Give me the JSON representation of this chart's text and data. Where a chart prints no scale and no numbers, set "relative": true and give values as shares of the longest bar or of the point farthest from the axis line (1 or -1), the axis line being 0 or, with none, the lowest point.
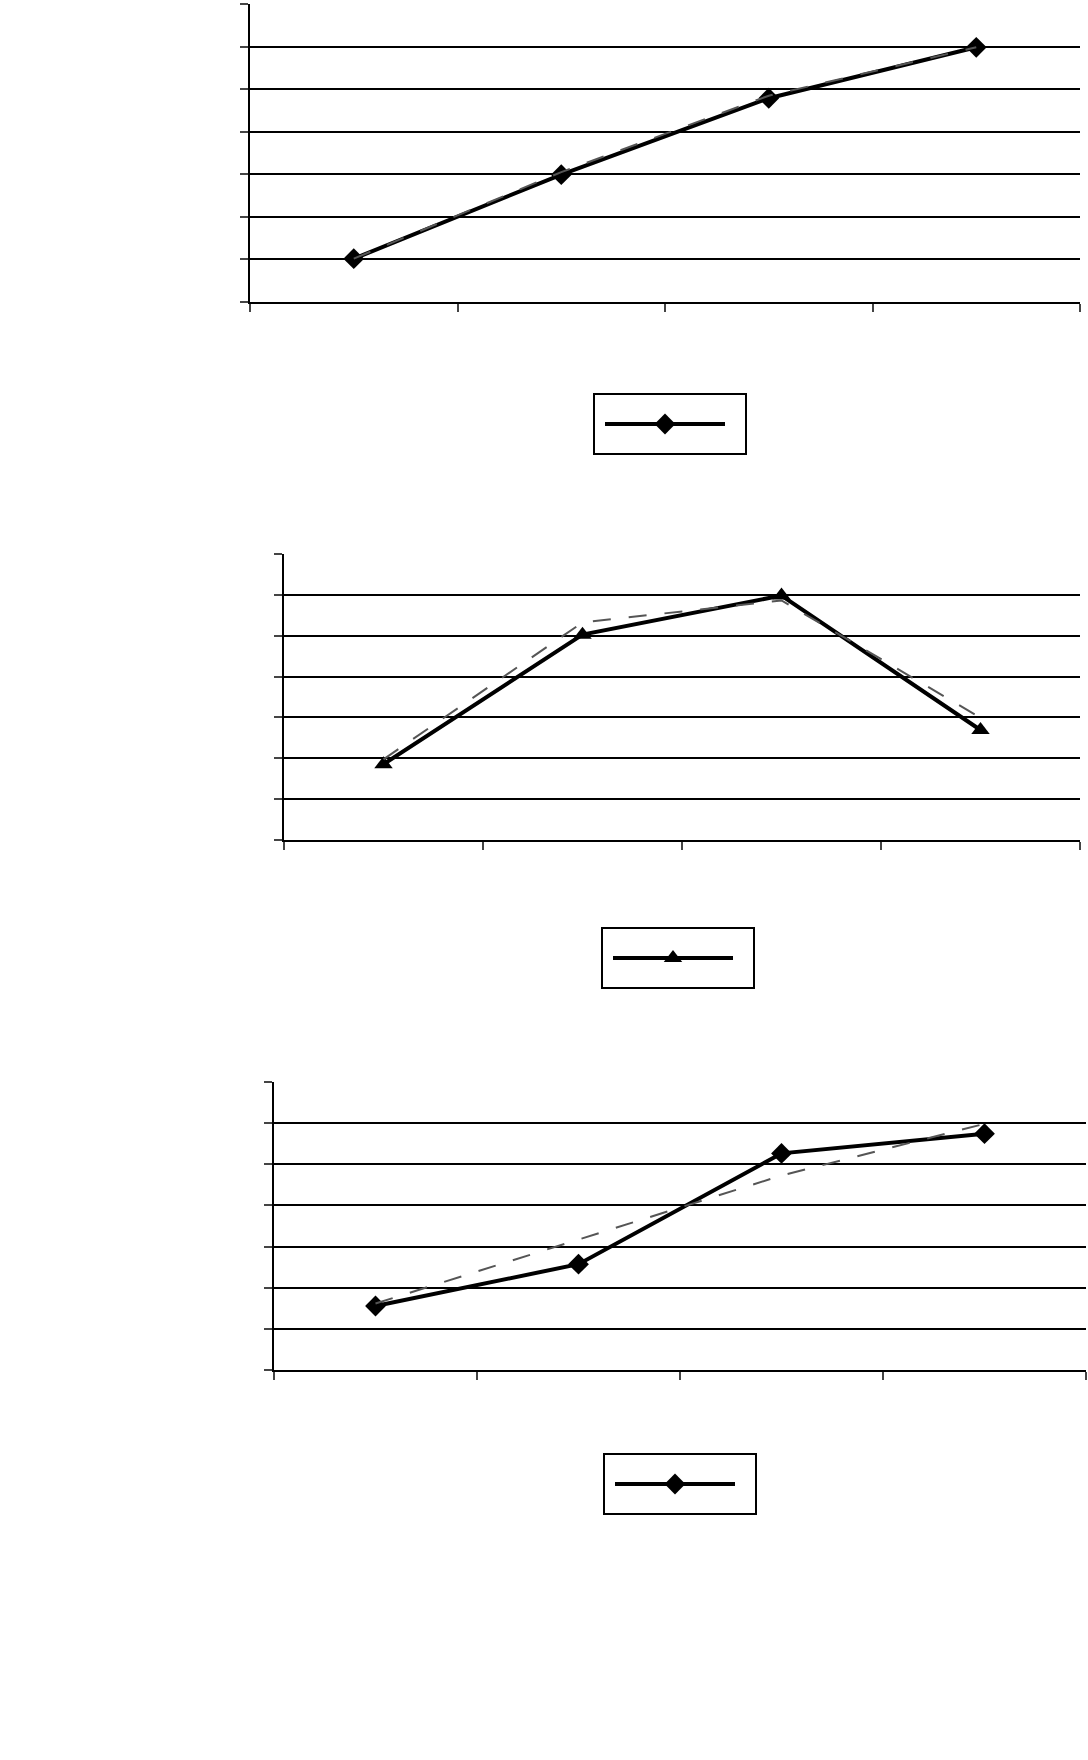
{
  "chart_data": [
    {
      "type": "line",
      "relative": true,
      "categories": [
        null,
        null,
        null,
        null
      ],
      "grid": "y",
      "series": [
        {
          "color": "#000000",
          "marker": "diamond",
          "line_style": "solid",
          "values": [
            0.17,
            0.5,
            0.8,
            1
          ]
        },
        {
          "color": "#555555",
          "marker": "none",
          "line_style": "dashed",
          "values": [
            0.17,
            0.51,
            0.81,
            1
          ]
        }
      ]
    },
    {
      "type": "line",
      "relative": true,
      "categories": [
        null,
        null,
        null,
        null
      ],
      "grid": "y",
      "series": [
        {
          "color": "#000000",
          "marker": "triangle",
          "line_style": "solid",
          "values": [
            0.31,
            0.84,
            1,
            0.45
          ]
        },
        {
          "color": "#555555",
          "marker": "none",
          "line_style": "dashed",
          "values": [
            0.33,
            0.89,
            0.98,
            0.5
          ]
        }
      ]
    },
    {
      "type": "line",
      "relative": true,
      "categories": [
        null,
        null,
        null,
        null
      ],
      "grid": "y",
      "series": [
        {
          "color": "#000000",
          "marker": "diamond",
          "line_style": "solid",
          "values": [
            0.26,
            0.43,
            0.88,
            0.96
          ]
        },
        {
          "color": "#555555",
          "marker": "none",
          "line_style": "dashed",
          "values": [
            0.27,
            0.53,
            0.79,
            1
          ]
        }
      ]
    }
  ]
}
